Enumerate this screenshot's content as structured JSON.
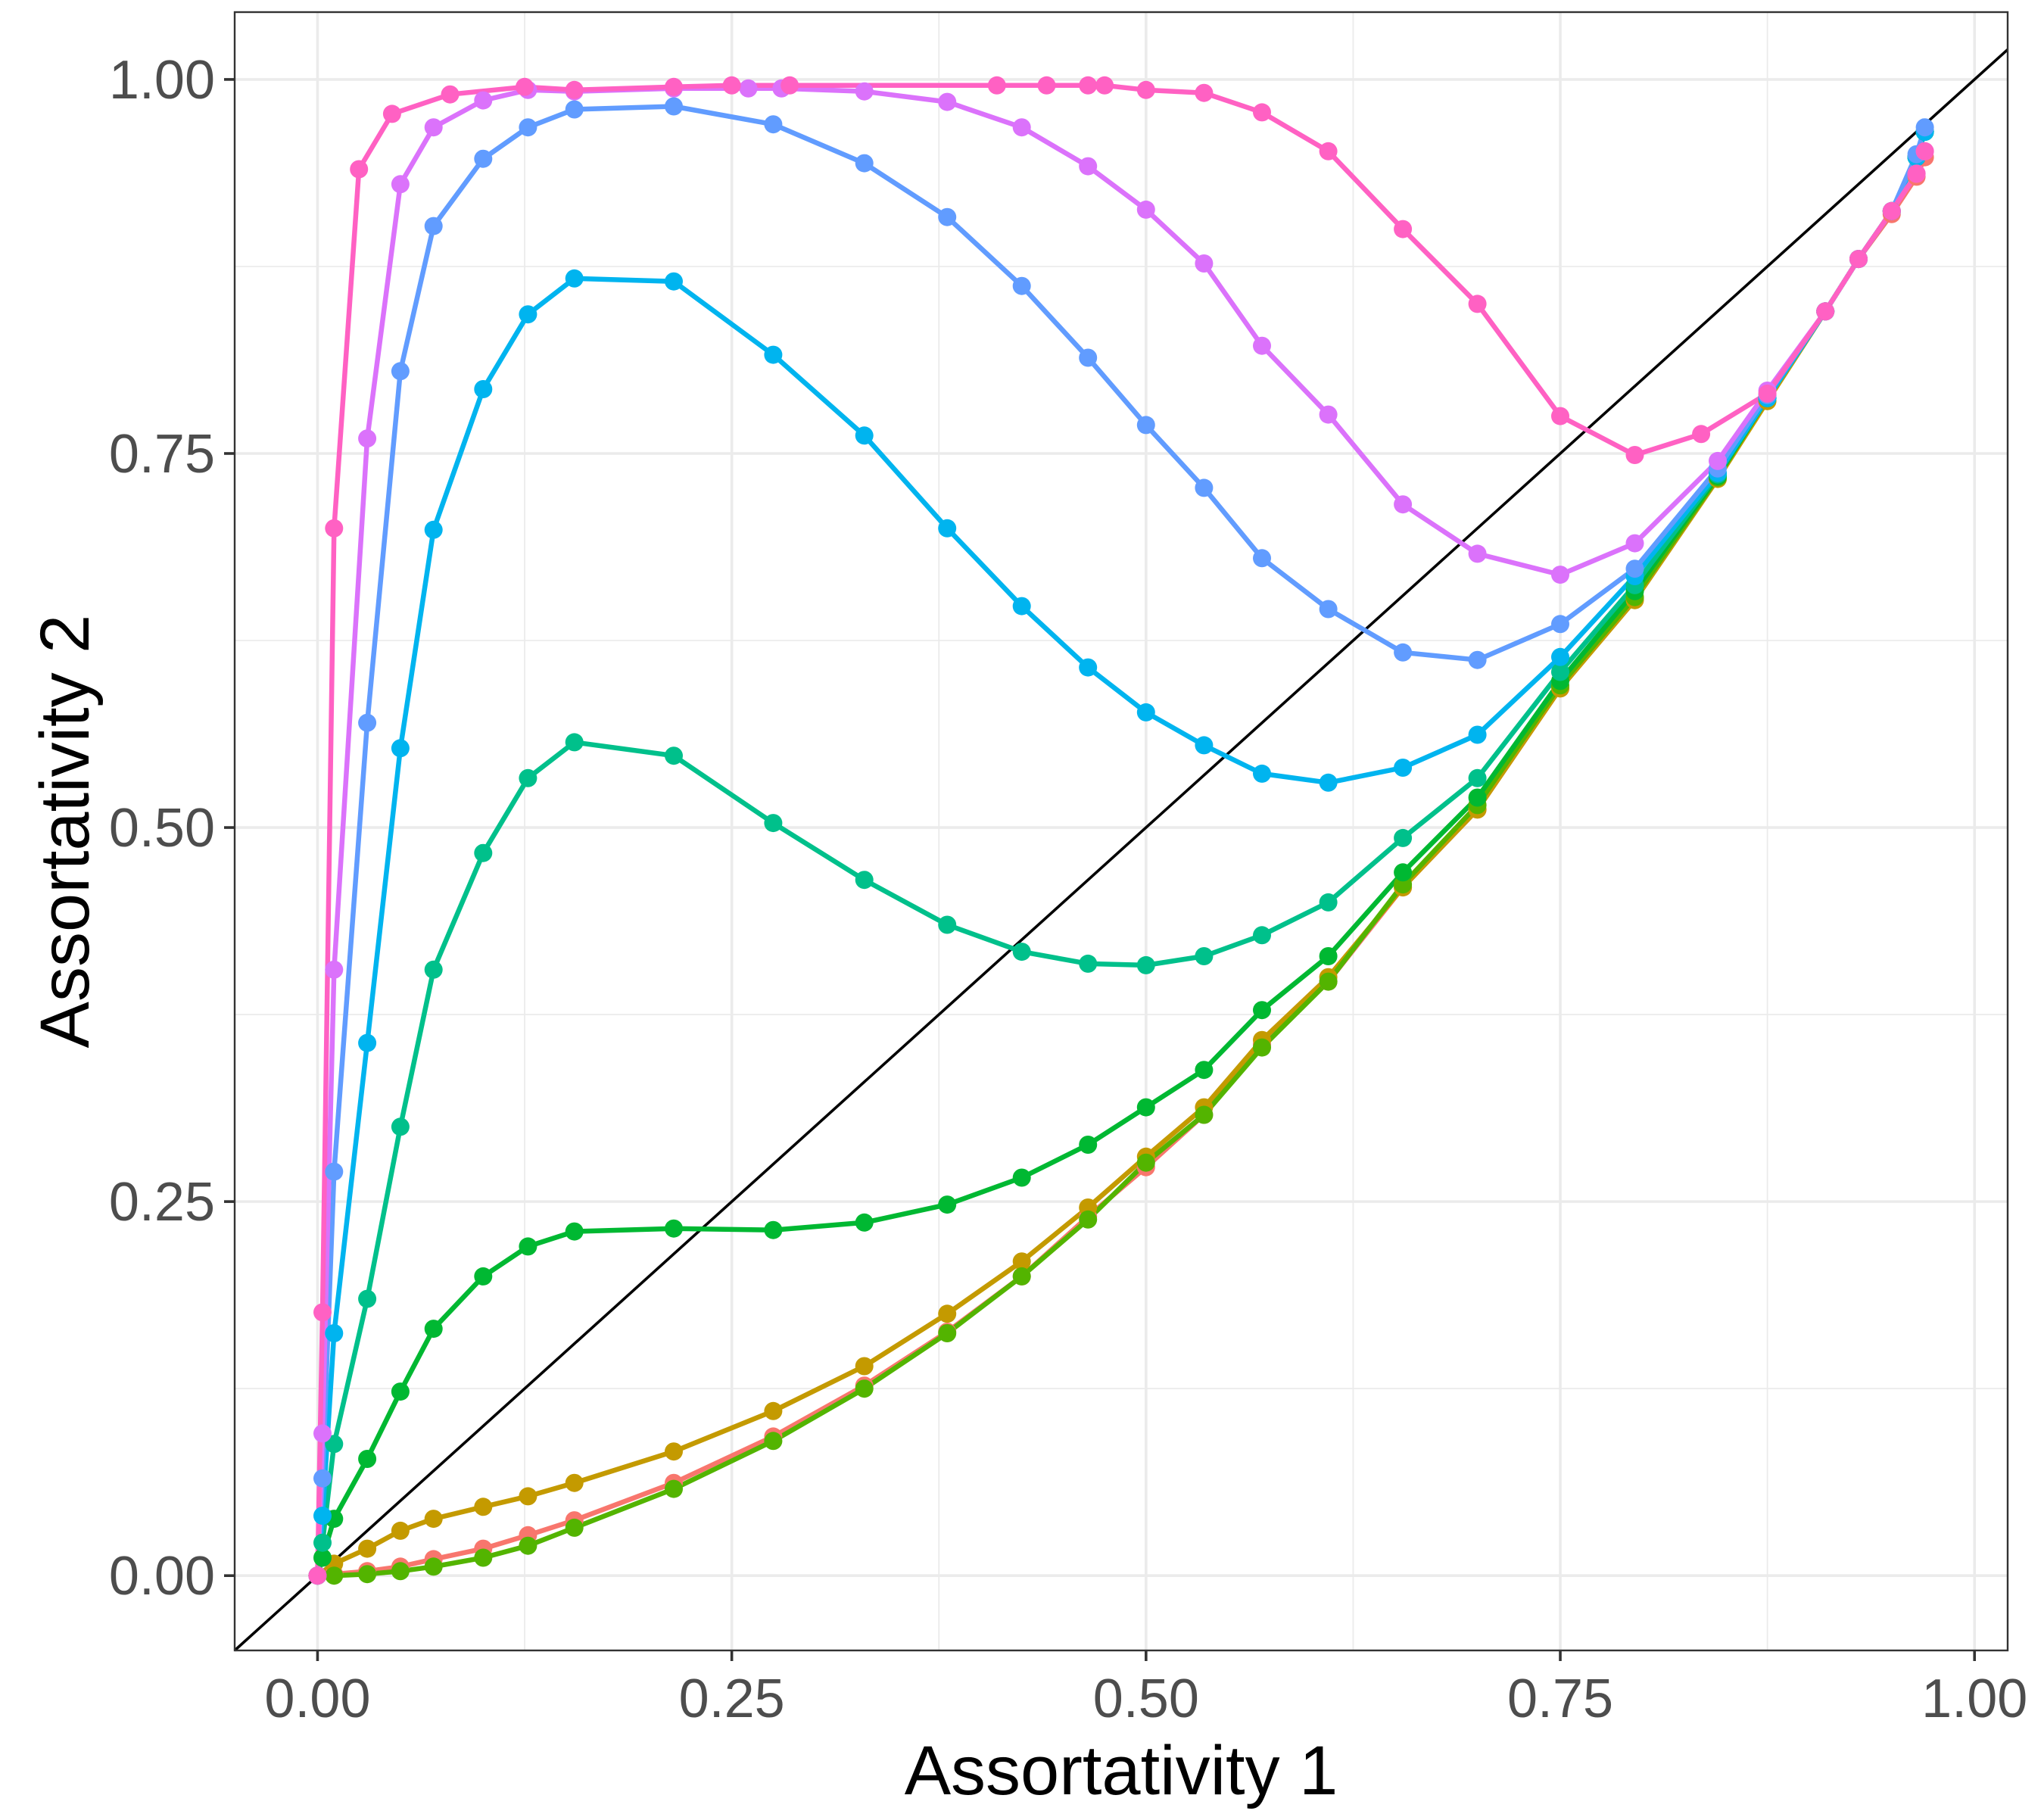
{
  "chart_data": {
    "type": "line",
    "title": "",
    "xlabel": "Assortativity 1",
    "ylabel": "Assortativity 2",
    "xlim": [
      -0.05,
      1.02
    ],
    "ylim": [
      -0.05,
      1.045
    ],
    "x_ticks": [
      0.0,
      0.25,
      0.5,
      0.75,
      1.0
    ],
    "x_tick_labels": [
      "0.00",
      "0.25",
      "0.50",
      "0.75",
      "1.00"
    ],
    "y_ticks": [
      0.0,
      0.25,
      0.5,
      0.75,
      1.0
    ],
    "y_tick_labels": [
      "0.00",
      "0.25",
      "0.50",
      "0.75",
      "1.00"
    ],
    "grid": true,
    "legend": "none",
    "reference_line": {
      "type": "identity",
      "color": "#000000"
    },
    "series": [
      {
        "color": "#F8766D",
        "points": [
          [
            0,
            0
          ],
          [
            0.01,
            0.001
          ],
          [
            0.03,
            0.003
          ],
          [
            0.05,
            0.006
          ],
          [
            0.07,
            0.011
          ],
          [
            0.1,
            0.018
          ],
          [
            0.127,
            0.027
          ],
          [
            0.155,
            0.037
          ],
          [
            0.215,
            0.062
          ],
          [
            0.275,
            0.093
          ],
          [
            0.33,
            0.127
          ],
          [
            0.38,
            0.163
          ],
          [
            0.425,
            0.2
          ],
          [
            0.465,
            0.24
          ],
          [
            0.5,
            0.273
          ],
          [
            0.535,
            0.308
          ],
          [
            0.57,
            0.355
          ],
          [
            0.61,
            0.397
          ],
          [
            0.655,
            0.46
          ],
          [
            0.7,
            0.512
          ],
          [
            0.75,
            0.593
          ],
          [
            0.795,
            0.653
          ],
          [
            0.845,
            0.734
          ],
          [
            0.875,
            0.787
          ],
          [
            0.91,
            0.845
          ],
          [
            0.93,
            0.88
          ],
          [
            0.95,
            0.91
          ],
          [
            0.965,
            0.935
          ],
          [
            0.97,
            0.948
          ]
        ]
      },
      {
        "color": "#C49A00",
        "points": [
          [
            0,
            0
          ],
          [
            0.01,
            0.008
          ],
          [
            0.03,
            0.018
          ],
          [
            0.05,
            0.03
          ],
          [
            0.07,
            0.038
          ],
          [
            0.1,
            0.046
          ],
          [
            0.127,
            0.053
          ],
          [
            0.155,
            0.062
          ],
          [
            0.215,
            0.083
          ],
          [
            0.275,
            0.11
          ],
          [
            0.33,
            0.14
          ],
          [
            0.38,
            0.175
          ],
          [
            0.425,
            0.21
          ],
          [
            0.465,
            0.246
          ],
          [
            0.5,
            0.28
          ],
          [
            0.535,
            0.313
          ],
          [
            0.57,
            0.358
          ],
          [
            0.61,
            0.4
          ],
          [
            0.655,
            0.46
          ],
          [
            0.7,
            0.512
          ],
          [
            0.75,
            0.593
          ],
          [
            0.795,
            0.652
          ],
          [
            0.845,
            0.733
          ],
          [
            0.875,
            0.785
          ],
          [
            0.91,
            0.845
          ],
          [
            0.93,
            0.88
          ],
          [
            0.95,
            0.912
          ],
          [
            0.965,
            0.948
          ],
          [
            0.97,
            0.965
          ]
        ]
      },
      {
        "color": "#53B400",
        "points": [
          [
            0,
            0
          ],
          [
            0.01,
            0.0
          ],
          [
            0.03,
            0.001
          ],
          [
            0.05,
            0.003
          ],
          [
            0.07,
            0.006
          ],
          [
            0.1,
            0.012
          ],
          [
            0.127,
            0.02
          ],
          [
            0.155,
            0.032
          ],
          [
            0.215,
            0.058
          ],
          [
            0.275,
            0.09
          ],
          [
            0.33,
            0.125
          ],
          [
            0.38,
            0.162
          ],
          [
            0.425,
            0.2
          ],
          [
            0.465,
            0.238
          ],
          [
            0.5,
            0.276
          ],
          [
            0.535,
            0.308
          ],
          [
            0.57,
            0.353
          ],
          [
            0.61,
            0.397
          ],
          [
            0.655,
            0.462
          ],
          [
            0.7,
            0.515
          ],
          [
            0.75,
            0.595
          ],
          [
            0.795,
            0.654
          ],
          [
            0.845,
            0.734
          ],
          [
            0.875,
            0.787
          ],
          [
            0.91,
            0.845
          ],
          [
            0.93,
            0.88
          ],
          [
            0.95,
            0.912
          ],
          [
            0.965,
            0.948
          ],
          [
            0.97,
            0.965
          ]
        ]
      },
      {
        "color": "#00B832",
        "points": [
          [
            0,
            0
          ],
          [
            0.003,
            0.012
          ],
          [
            0.01,
            0.038
          ],
          [
            0.03,
            0.078
          ],
          [
            0.05,
            0.123
          ],
          [
            0.07,
            0.165
          ],
          [
            0.1,
            0.2
          ],
          [
            0.127,
            0.22
          ],
          [
            0.155,
            0.23
          ],
          [
            0.215,
            0.232
          ],
          [
            0.275,
            0.231
          ],
          [
            0.33,
            0.236
          ],
          [
            0.38,
            0.248
          ],
          [
            0.425,
            0.266
          ],
          [
            0.465,
            0.288
          ],
          [
            0.5,
            0.313
          ],
          [
            0.535,
            0.338
          ],
          [
            0.57,
            0.378
          ],
          [
            0.61,
            0.414
          ],
          [
            0.655,
            0.47
          ],
          [
            0.7,
            0.52
          ],
          [
            0.75,
            0.598
          ],
          [
            0.795,
            0.658
          ],
          [
            0.845,
            0.735
          ],
          [
            0.875,
            0.787
          ],
          [
            0.91,
            0.845
          ],
          [
            0.93,
            0.88
          ],
          [
            0.95,
            0.912
          ],
          [
            0.965,
            0.948
          ],
          [
            0.97,
            0.965
          ]
        ]
      },
      {
        "color": "#00C08B",
        "points": [
          [
            0,
            0
          ],
          [
            0.003,
            0.022
          ],
          [
            0.01,
            0.088
          ],
          [
            0.03,
            0.185
          ],
          [
            0.05,
            0.3
          ],
          [
            0.07,
            0.405
          ],
          [
            0.1,
            0.483
          ],
          [
            0.127,
            0.533
          ],
          [
            0.155,
            0.557
          ],
          [
            0.215,
            0.548
          ],
          [
            0.275,
            0.503
          ],
          [
            0.33,
            0.465
          ],
          [
            0.38,
            0.435
          ],
          [
            0.425,
            0.417
          ],
          [
            0.465,
            0.409
          ],
          [
            0.5,
            0.408
          ],
          [
            0.535,
            0.414
          ],
          [
            0.57,
            0.428
          ],
          [
            0.61,
            0.45
          ],
          [
            0.655,
            0.493
          ],
          [
            0.7,
            0.533
          ],
          [
            0.75,
            0.604
          ],
          [
            0.795,
            0.662
          ],
          [
            0.845,
            0.736
          ],
          [
            0.875,
            0.787
          ],
          [
            0.91,
            0.845
          ],
          [
            0.93,
            0.88
          ],
          [
            0.95,
            0.912
          ],
          [
            0.965,
            0.948
          ],
          [
            0.97,
            0.965
          ]
        ]
      },
      {
        "color": "#00B4EF",
        "points": [
          [
            0,
            0
          ],
          [
            0.003,
            0.04
          ],
          [
            0.01,
            0.162
          ],
          [
            0.03,
            0.356
          ],
          [
            0.05,
            0.553
          ],
          [
            0.07,
            0.699
          ],
          [
            0.1,
            0.793
          ],
          [
            0.127,
            0.843
          ],
          [
            0.155,
            0.867
          ],
          [
            0.215,
            0.865
          ],
          [
            0.275,
            0.816
          ],
          [
            0.33,
            0.762
          ],
          [
            0.38,
            0.7
          ],
          [
            0.425,
            0.648
          ],
          [
            0.465,
            0.607
          ],
          [
            0.5,
            0.577
          ],
          [
            0.535,
            0.555
          ],
          [
            0.57,
            0.536
          ],
          [
            0.61,
            0.53
          ],
          [
            0.655,
            0.54
          ],
          [
            0.7,
            0.562
          ],
          [
            0.75,
            0.614
          ],
          [
            0.795,
            0.668
          ],
          [
            0.845,
            0.737
          ],
          [
            0.875,
            0.787
          ],
          [
            0.91,
            0.845
          ],
          [
            0.93,
            0.88
          ],
          [
            0.95,
            0.912
          ],
          [
            0.965,
            0.948
          ],
          [
            0.97,
            0.965
          ]
        ]
      },
      {
        "color": "#619CFF",
        "points": [
          [
            0,
            0
          ],
          [
            0.003,
            0.065
          ],
          [
            0.01,
            0.27
          ],
          [
            0.03,
            0.57
          ],
          [
            0.05,
            0.805
          ],
          [
            0.07,
            0.902
          ],
          [
            0.1,
            0.947
          ],
          [
            0.127,
            0.968
          ],
          [
            0.155,
            0.98
          ],
          [
            0.215,
            0.982
          ],
          [
            0.275,
            0.97
          ],
          [
            0.33,
            0.944
          ],
          [
            0.38,
            0.908
          ],
          [
            0.425,
            0.862
          ],
          [
            0.465,
            0.814
          ],
          [
            0.5,
            0.769
          ],
          [
            0.535,
            0.727
          ],
          [
            0.57,
            0.68
          ],
          [
            0.61,
            0.646
          ],
          [
            0.655,
            0.617
          ],
          [
            0.7,
            0.612
          ],
          [
            0.75,
            0.636
          ],
          [
            0.795,
            0.673
          ],
          [
            0.845,
            0.74
          ],
          [
            0.875,
            0.789
          ],
          [
            0.91,
            0.845
          ],
          [
            0.93,
            0.88
          ],
          [
            0.95,
            0.912
          ],
          [
            0.965,
            0.95
          ],
          [
            0.97,
            0.968
          ]
        ]
      },
      {
        "color": "#DB72FB",
        "points": [
          [
            0,
            0
          ],
          [
            0.003,
            0.095
          ],
          [
            0.01,
            0.405
          ],
          [
            0.03,
            0.76
          ],
          [
            0.05,
            0.93
          ],
          [
            0.07,
            0.968
          ],
          [
            0.1,
            0.986
          ],
          [
            0.127,
            0.993
          ],
          [
            0.155,
            0.992
          ],
          [
            0.215,
            0.994
          ],
          [
            0.26,
            0.994
          ],
          [
            0.28,
            0.994
          ],
          [
            0.33,
            0.992
          ],
          [
            0.38,
            0.985
          ],
          [
            0.425,
            0.968
          ],
          [
            0.465,
            0.942
          ],
          [
            0.5,
            0.913
          ],
          [
            0.535,
            0.877
          ],
          [
            0.57,
            0.822
          ],
          [
            0.61,
            0.776
          ],
          [
            0.655,
            0.716
          ],
          [
            0.7,
            0.683
          ],
          [
            0.75,
            0.669
          ],
          [
            0.795,
            0.69
          ],
          [
            0.845,
            0.745
          ],
          [
            0.875,
            0.792
          ],
          [
            0.91,
            0.845
          ],
          [
            0.93,
            0.88
          ],
          [
            0.95,
            0.912
          ],
          [
            0.965,
            0.937
          ],
          [
            0.97,
            0.952
          ]
        ]
      },
      {
        "color": "#FF61C3",
        "points": [
          [
            0,
            0
          ],
          [
            0.003,
            0.176
          ],
          [
            0.01,
            0.7
          ],
          [
            0.025,
            0.94
          ],
          [
            0.045,
            0.977
          ],
          [
            0.08,
            0.99
          ],
          [
            0.125,
            0.995
          ],
          [
            0.155,
            0.993
          ],
          [
            0.215,
            0.995
          ],
          [
            0.25,
            0.996
          ],
          [
            0.285,
            0.996
          ],
          [
            0.41,
            0.996
          ],
          [
            0.44,
            0.996
          ],
          [
            0.465,
            0.996
          ],
          [
            0.475,
            0.996
          ],
          [
            0.5,
            0.993
          ],
          [
            0.535,
            0.991
          ],
          [
            0.57,
            0.978
          ],
          [
            0.61,
            0.952
          ],
          [
            0.655,
            0.9
          ],
          [
            0.7,
            0.85
          ],
          [
            0.75,
            0.775
          ],
          [
            0.795,
            0.749
          ],
          [
            0.835,
            0.763
          ],
          [
            0.875,
            0.79
          ],
          [
            0.91,
            0.845
          ],
          [
            0.93,
            0.88
          ],
          [
            0.95,
            0.912
          ],
          [
            0.965,
            0.937
          ],
          [
            0.97,
            0.952
          ]
        ]
      }
    ]
  }
}
